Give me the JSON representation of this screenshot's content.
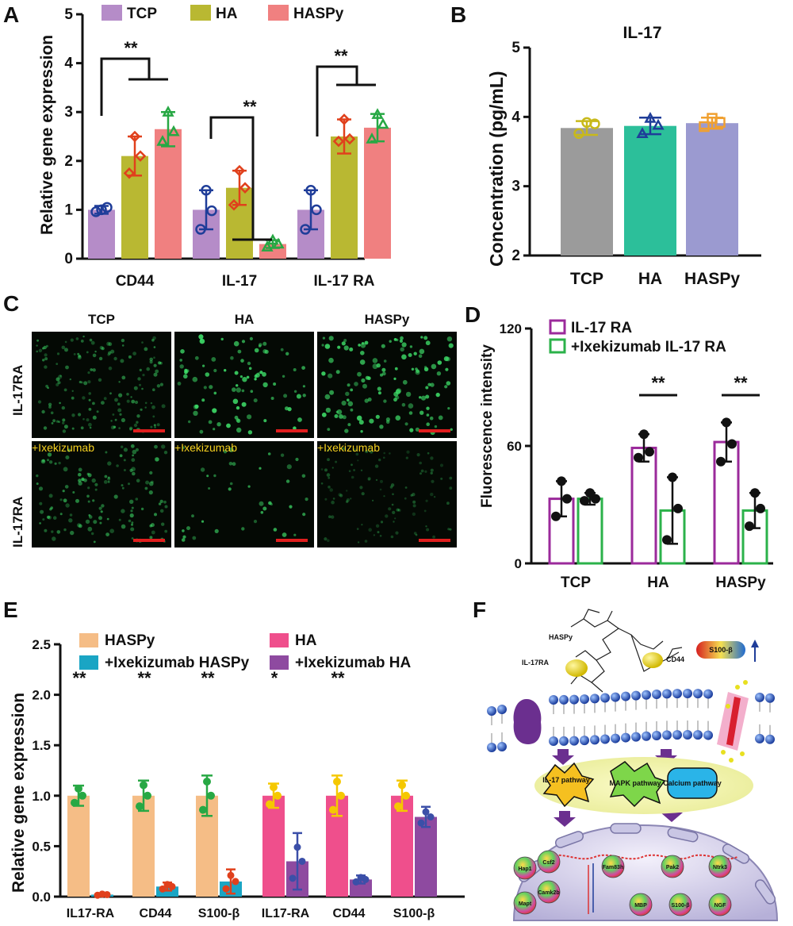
{
  "panels": {
    "A": {
      "letter": "A",
      "ylabel": "Relative gene expression",
      "yticks": [
        "0",
        "1",
        "2",
        "3",
        "4",
        "5"
      ],
      "legend": [
        "TCP",
        "HA",
        "HASPy"
      ],
      "sig_labels": [
        "**",
        "**",
        "**"
      ]
    },
    "B": {
      "letter": "B",
      "title": "IL-17",
      "ylabel": "Concentration (pg/mL)",
      "yticks": [
        "2",
        "3",
        "4",
        "5"
      ]
    },
    "C": {
      "letter": "C",
      "col_labels": [
        "TCP",
        "HA",
        "HASPy"
      ],
      "row_labels": [
        "IL-17RA",
        "IL-17RA"
      ],
      "treatment_label": "+Ixekizumab"
    },
    "D": {
      "letter": "D",
      "ylabel": "Fluorescence intensity",
      "yticks": [
        "0",
        "60",
        "120"
      ],
      "legend": [
        "IL-17 RA",
        "+Ixekizumab IL-17 RA"
      ],
      "sig_labels": [
        "**",
        "**"
      ]
    },
    "E": {
      "letter": "E",
      "ylabel": "Relative gene expression",
      "yticks": [
        "0.0",
        "0.5",
        "1.0",
        "1.5",
        "2.0",
        "2.5"
      ],
      "legend": [
        "HASPy",
        "HA",
        "+Ixekizumab HASPy",
        "+Ixekizumab HA"
      ],
      "sig_labels": [
        "**",
        "**",
        "**",
        "*",
        "**"
      ]
    },
    "F": {
      "letter": "F",
      "labels": {
        "haspy": "HASPy",
        "il17ra": "IL-17RA",
        "cd44": "CD44",
        "s100b": "S100-β",
        "il17_pathway": "IL-17 pathway",
        "mapk_pathway": "MAPK pathway",
        "calcium_pathway": "Calcium pathway",
        "genes": [
          "Hap1",
          "Csf2",
          "Mapt",
          "Camk2b",
          "Fam83h",
          "Pak2",
          "Ntrk3",
          "MBP",
          "S100-β",
          "NGF"
        ]
      }
    }
  },
  "colors": {
    "tcp": "#b58cc8",
    "ha": "#b9b832",
    "haspy": "#f08080",
    "tcp_dot": "#1f3d99",
    "ha_dot": "#e0401c",
    "haspy_dot": "#27a844",
    "b_tcp": "#9b9b9b",
    "b_ha": "#2cbf9a",
    "b_haspy": "#9b9ad0",
    "b_tcp_dot": "#c8b91a",
    "b_ha_dot": "#1f3d99",
    "b_haspy_dot": "#f0a030",
    "d_ctrl": "#9b2a9b",
    "d_ixe": "#2bb24a",
    "e_haspy": "#f5bd86",
    "e_haspy_ixe": "#1aa5c4",
    "e_ha": "#ef4f8c",
    "e_ha_ixe": "#8e4aa0"
  },
  "chart_data": [
    {
      "panel": "A",
      "type": "bar",
      "categories": [
        "CD44",
        "IL-17",
        "IL-17 RA"
      ],
      "ylabel": "Relative gene expression",
      "ylim": [
        0,
        5
      ],
      "series": [
        {
          "name": "TCP",
          "values": [
            1.0,
            1.0,
            1.0
          ],
          "err": [
            0.08,
            0.4,
            0.4
          ],
          "points": [
            [
              0.96,
              1.05,
              1.0
            ],
            [
              0.6,
              0.98,
              1.4
            ],
            [
              0.6,
              1.0,
              1.4
            ]
          ]
        },
        {
          "name": "HA",
          "values": [
            2.1,
            1.45,
            2.5
          ],
          "err": [
            0.4,
            0.35,
            0.35
          ],
          "points": [
            [
              1.75,
              2.1,
              2.5
            ],
            [
              1.1,
              1.45,
              1.8
            ],
            [
              2.4,
              2.45,
              2.85
            ]
          ]
        },
        {
          "name": "HASPy",
          "values": [
            2.65,
            0.3,
            2.68
          ],
          "err": [
            0.35,
            0.08,
            0.28
          ],
          "points": [
            [
              2.4,
              2.6,
              3.0
            ],
            [
              0.24,
              0.3,
              0.38
            ],
            [
              2.45,
              2.75,
              2.95
            ]
          ]
        }
      ],
      "significance": [
        "**",
        "**",
        "**"
      ]
    },
    {
      "panel": "B",
      "type": "bar",
      "title": "IL-17",
      "categories": [
        "TCP",
        "HA",
        "HASPy"
      ],
      "ylabel": "Concentration (pg/mL)",
      "ylim": [
        2,
        5
      ],
      "values": [
        3.84,
        3.87,
        3.91
      ],
      "err": [
        0.1,
        0.12,
        0.08
      ],
      "points": [
        [
          3.76,
          3.9,
          3.92
        ],
        [
          3.76,
          3.88,
          3.98
        ],
        [
          3.86,
          3.92,
          3.98
        ]
      ]
    },
    {
      "panel": "D",
      "type": "bar",
      "categories": [
        "TCP",
        "HA",
        "HASPy"
      ],
      "ylabel": "Fluorescence intensity",
      "ylim": [
        0,
        120
      ],
      "series": [
        {
          "name": "IL-17 RA",
          "values": [
            33,
            59,
            62
          ],
          "err": [
            9,
            7,
            10
          ],
          "points": [
            [
              24,
              33,
              42
            ],
            [
              54,
              57,
              66
            ],
            [
              52,
              61,
              72
            ]
          ]
        },
        {
          "name": "+Ixekizumab IL-17 RA",
          "values": [
            33,
            27,
            27
          ],
          "err": [
            3,
            17,
            9
          ],
          "points": [
            [
              32,
              33,
              36
            ],
            [
              12,
              28,
              44
            ],
            [
              19,
              28,
              36
            ]
          ]
        }
      ],
      "significance": [
        "",
        "**",
        "**"
      ]
    },
    {
      "panel": "E",
      "type": "bar",
      "categories": [
        "IL17-RA",
        "CD44",
        "S100-β",
        "IL17-RA",
        "CD44",
        "S100-β"
      ],
      "ylabel": "Relative gene expression",
      "ylim": [
        0,
        2.5
      ],
      "groups": [
        {
          "control": "HASPy",
          "treated": "+Ixekizumab HASPy",
          "control_values": [
            1.0,
            1.0,
            1.0
          ],
          "control_err": [
            0.1,
            0.15,
            0.2
          ],
          "treated_values": [
            0.02,
            0.1,
            0.15
          ],
          "treated_err": [
            0.01,
            0.04,
            0.12
          ]
        },
        {
          "control": "HA",
          "treated": "+Ixekizumab HA",
          "control_values": [
            1.0,
            1.0,
            1.0
          ],
          "control_err": [
            0.12,
            0.2,
            0.15
          ],
          "treated_values": [
            0.35,
            0.17,
            0.79
          ],
          "treated_err": [
            0.28,
            0.04,
            0.1
          ]
        }
      ],
      "significance": [
        "**",
        "**",
        "**",
        "*",
        "**",
        ""
      ]
    }
  ]
}
